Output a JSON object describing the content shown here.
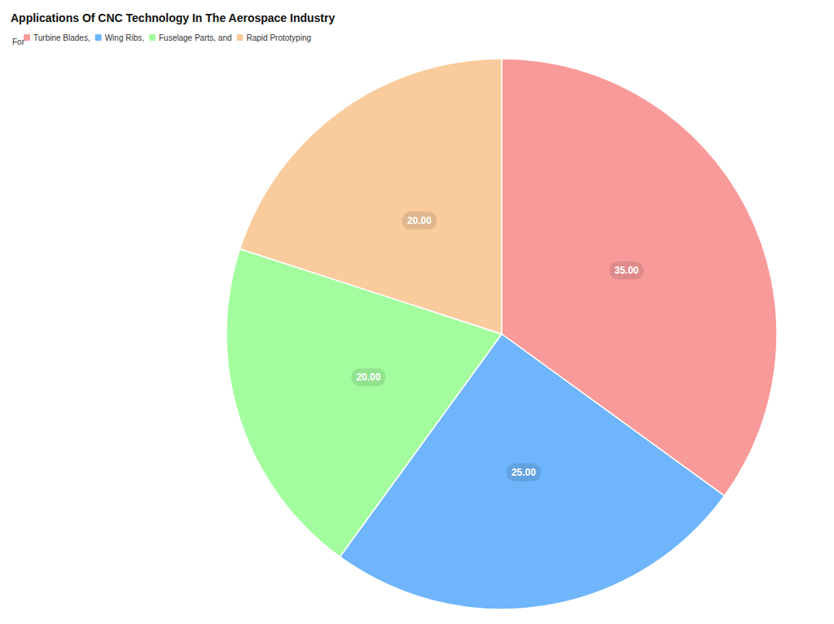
{
  "chart_data": {
    "type": "pie",
    "title": "Applications Of CNC Technology In The Aerospace Industry",
    "subtitle": "For",
    "categories": [
      "Turbine Blades,",
      "Wing Ribs,",
      "Fuselage Parts, and",
      "Rapid Prototyping"
    ],
    "values": [
      35,
      25,
      20,
      20
    ],
    "value_labels": [
      "35.00",
      "25.00",
      "20.00",
      "20.00"
    ],
    "colors": [
      "#f99a9a",
      "#6eb5fb",
      "#a3fd9e",
      "#f9cb9d"
    ],
    "data_labels": true,
    "legend": "top-left"
  }
}
